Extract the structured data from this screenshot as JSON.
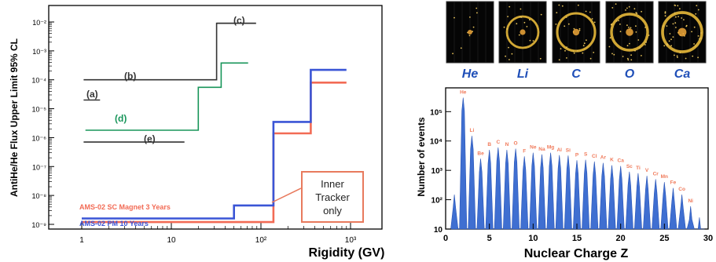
{
  "chart_data": [
    {
      "type": "line",
      "ylabel": "AntiHe/He Flux Upper Limit 95% CL",
      "xlabel": "Rigidity (GV)",
      "xscale": "log",
      "yscale": "log",
      "xlim": [
        1,
        1000
      ],
      "ylim": [
        5e-10,
        0.02
      ],
      "xticks": [
        "1",
        "10",
        "10²",
        "10³"
      ],
      "yticks": [
        "10⁻⁹",
        "10⁻⁸",
        "10⁻⁷",
        "10⁻⁶",
        "10⁻⁵",
        "10⁻⁴",
        "10⁻³",
        "10⁻²"
      ],
      "series": [
        {
          "name": "(a)",
          "color": "#333333",
          "points": [
            [
              1.05,
              2e-05
            ],
            [
              1.6,
              2e-05
            ]
          ]
        },
        {
          "name": "(b)",
          "color": "#333333",
          "points": [
            [
              1.05,
              0.0001
            ],
            [
              32,
              0.0001
            ],
            [
              32,
              0.009
            ],
            [
              88,
              0.009
            ]
          ]
        },
        {
          "name": "(c)",
          "color": "#333333",
          "points": [
            [
              32,
              0.009
            ],
            [
              88,
              0.009
            ]
          ]
        },
        {
          "name": "(d)",
          "color": "#18955a",
          "points": [
            [
              1.1,
              1.8e-06
            ],
            [
              20,
              1.8e-06
            ],
            [
              20,
              5.5e-05
            ],
            [
              36,
              5.5e-05
            ],
            [
              36,
              0.00038
            ],
            [
              72,
              0.00038
            ]
          ]
        },
        {
          "name": "(e)",
          "color": "#333333",
          "points": [
            [
              1.05,
              7e-07
            ],
            [
              14,
              7e-07
            ]
          ]
        },
        {
          "name": "AMS-02 SC Magnet 3 Years",
          "color": "#f26b55",
          "points": [
            [
              1,
              1.2e-09
            ],
            [
              138,
              1.2e-09
            ],
            [
              138,
              1.4e-06
            ],
            [
              360,
              1.4e-06
            ],
            [
              360,
              8e-05
            ],
            [
              900,
              8e-05
            ]
          ]
        },
        {
          "name": "AMS-02 PM 10 Years",
          "color": "#3a55d6",
          "points": [
            [
              1,
              1.6e-09
            ],
            [
              50,
              1.6e-09
            ],
            [
              50,
              4.5e-09
            ],
            [
              138,
              4.5e-09
            ],
            [
              138,
              3.5e-06
            ],
            [
              360,
              3.5e-06
            ],
            [
              360,
              0.00022
            ],
            [
              900,
              0.00022
            ]
          ]
        }
      ],
      "annotations": {
        "a": "(a)",
        "b": "(b)",
        "c": "(c)",
        "d": "(d)",
        "e": "(e)",
        "sc_label": "AMS-02 SC Magnet 3 Years",
        "pm_label": "AMS-02 PM 10 Years",
        "box": [
          "Inner",
          "Tracker",
          "only"
        ]
      }
    },
    {
      "type": "area",
      "xlabel": "Nuclear Charge Z",
      "ylabel": "Number of events",
      "xlim": [
        0,
        30
      ],
      "ylim": [
        10,
        1000000
      ],
      "yscale": "log",
      "xticks": [
        "0",
        "5",
        "10",
        "15",
        "20",
        "25",
        "30"
      ],
      "yticks": [
        "10",
        "10²",
        "10³",
        "10⁴",
        "10⁵"
      ],
      "fill_color": "#3f6fd1",
      "x": [
        1,
        2,
        3,
        4,
        5,
        6,
        7,
        8,
        9,
        10,
        11,
        12,
        13,
        14,
        15,
        16,
        17,
        18,
        19,
        20,
        21,
        22,
        23,
        24,
        25,
        26,
        27,
        28,
        29
      ],
      "y": [
        150,
        300000,
        15000,
        2500,
        5000,
        6000,
        5000,
        5500,
        3000,
        4000,
        3500,
        4000,
        3300,
        3200,
        2200,
        2300,
        2000,
        1800,
        1500,
        1400,
        900,
        800,
        650,
        500,
        400,
        250,
        150,
        60,
        25
      ],
      "element_labels": [
        "He",
        "Li",
        "Be",
        "B",
        "C",
        "N",
        "O",
        "F",
        "Ne",
        "Na",
        "Mg",
        "Al",
        "Si",
        "P",
        "S",
        "Cl",
        "Ar",
        "K",
        "Ca",
        "Sc",
        "Ti",
        "V",
        "Cr",
        "Mn",
        "Fe",
        "Co",
        "Ni"
      ]
    }
  ],
  "ring_images": [
    {
      "label": "He"
    },
    {
      "label": "Li"
    },
    {
      "label": "C"
    },
    {
      "label": "O"
    },
    {
      "label": "Ca"
    }
  ]
}
